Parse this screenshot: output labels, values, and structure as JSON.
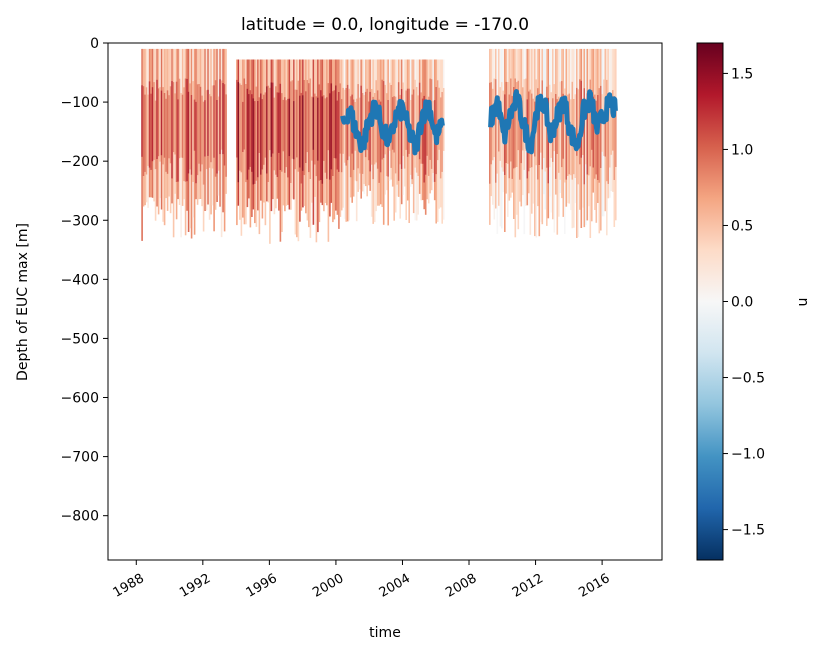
{
  "chart_data": {
    "type": "heatmap",
    "title": "latitude = 0.0, longitude = -170.0",
    "xlabel": "time",
    "ylabel": "Depth of EUC max [m]",
    "xlim": [
      1986.3,
      2019.6
    ],
    "ylim": [
      -875,
      0
    ],
    "x_ticks": [
      1988,
      1992,
      1996,
      2000,
      2004,
      2008,
      2012,
      2016
    ],
    "x_tick_labels": [
      "1988",
      "1992",
      "1996",
      "2000",
      "2004",
      "2008",
      "2012",
      "2016"
    ],
    "y_ticks": [
      0,
      -100,
      -200,
      -300,
      -400,
      -500,
      -600,
      -700,
      -800
    ],
    "y_tick_labels": [
      "0",
      "−100",
      "−200",
      "−300",
      "−400",
      "−500",
      "−600",
      "−700",
      "−800"
    ],
    "colorbar": {
      "label": "u",
      "colormap": "RdBu_r",
      "vmin": -1.7,
      "vmax": 1.7,
      "ticks": [
        1.5,
        1.0,
        0.5,
        0.0,
        -0.5,
        -1.0,
        -1.5
      ],
      "tick_labels": [
        "1.5",
        "1.0",
        "0.5",
        "0.0",
        "−0.5",
        "−1.0",
        "−1.5"
      ]
    },
    "colormap_stops": [
      "#67001f",
      "#b2182b",
      "#d6604d",
      "#f4a582",
      "#fddbc7",
      "#f7f7f7",
      "#d1e5f0",
      "#92c5de",
      "#4393c3",
      "#2166ac",
      "#053061"
    ],
    "data_segments": [
      {
        "x_start": 1988.3,
        "x_end": 1993.4,
        "top": -10,
        "bottom": -295,
        "mean_u": 0.55
      },
      {
        "x_start": 1994.0,
        "x_end": 2000.3,
        "top": -28,
        "bottom": -300,
        "mean_u": 0.75
      },
      {
        "x_start": 2000.3,
        "x_end": 2006.5,
        "top": -28,
        "bottom": -270,
        "mean_u": 0.4
      },
      {
        "x_start": 2009.2,
        "x_end": 2016.8,
        "top": -10,
        "bottom": -290,
        "mean_u": 0.35
      }
    ],
    "series": [
      {
        "type": "line",
        "color": "#1f77b4",
        "x": [
          2000.4,
          2000.8,
          2001.2,
          2001.6,
          2002.0,
          2002.4,
          2002.8,
          2003.2,
          2003.6,
          2004.0,
          2004.4,
          2004.8,
          2005.2,
          2005.6,
          2006.0,
          2006.4,
          2009.3,
          2009.7,
          2010.1,
          2010.5,
          2010.9,
          2011.3,
          2011.7,
          2012.1,
          2012.5,
          2012.9,
          2013.3,
          2013.7,
          2014.1,
          2014.5,
          2014.9,
          2015.3,
          2015.7,
          2016.1,
          2016.5,
          2016.8
        ],
        "y": [
          -140,
          -110,
          -150,
          -175,
          -130,
          -105,
          -145,
          -170,
          -125,
          -110,
          -150,
          -180,
          -120,
          -105,
          -160,
          -140,
          -130,
          -100,
          -160,
          -120,
          -95,
          -140,
          -175,
          -110,
          -100,
          -155,
          -125,
          -95,
          -150,
          -175,
          -115,
          -95,
          -145,
          -120,
          -100,
          -115
        ]
      }
    ]
  }
}
